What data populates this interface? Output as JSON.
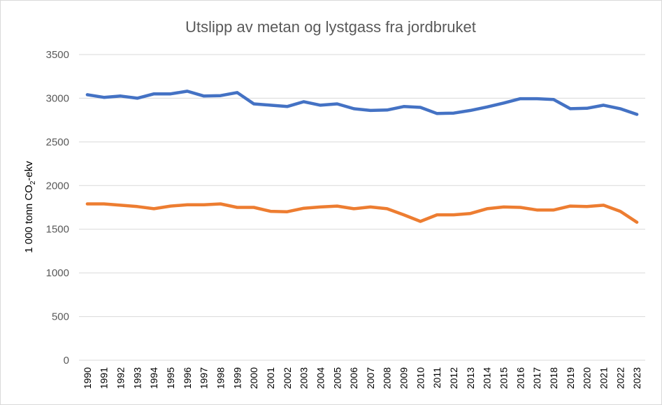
{
  "chart_data": {
    "type": "line",
    "title": "Utslipp av metan og lystgass fra jordbruket",
    "ylabel": "1 000 tonn CO₂-ekv",
    "xlabel": "",
    "ylim": [
      0,
      3500
    ],
    "yticks": [
      "0",
      "500",
      "1000",
      "1500",
      "2000",
      "2500",
      "3000",
      "3500"
    ],
    "grid": true,
    "legend": "none",
    "categories": [
      "1990",
      "1991",
      "1992",
      "1993",
      "1994",
      "1995",
      "1996",
      "1997",
      "1998",
      "1999",
      "2000",
      "2001",
      "2002",
      "2003",
      "2004",
      "2005",
      "2006",
      "2007",
      "2008",
      "2009",
      "2010",
      "2011",
      "2012",
      "2013",
      "2014",
      "2015",
      "2016",
      "2017",
      "2018",
      "2019",
      "2020",
      "2021",
      "2022",
      "2023"
    ],
    "series": [
      {
        "color": "#4472c4",
        "values": [
          3040,
          3010,
          3025,
          3000,
          3050,
          3050,
          3080,
          3025,
          3030,
          3065,
          2935,
          2920,
          2905,
          2960,
          2920,
          2935,
          2880,
          2860,
          2865,
          2905,
          2895,
          2825,
          2830,
          2860,
          2900,
          2945,
          2995,
          2995,
          2985,
          2880,
          2885,
          2920,
          2880,
          2815
        ]
      },
      {
        "color": "#ed7d31",
        "values": [
          1790,
          1790,
          1775,
          1760,
          1735,
          1765,
          1780,
          1780,
          1790,
          1750,
          1750,
          1705,
          1700,
          1740,
          1755,
          1765,
          1735,
          1755,
          1735,
          1665,
          1590,
          1665,
          1665,
          1680,
          1735,
          1755,
          1750,
          1720,
          1720,
          1765,
          1760,
          1775,
          1705,
          1580
        ]
      }
    ]
  }
}
